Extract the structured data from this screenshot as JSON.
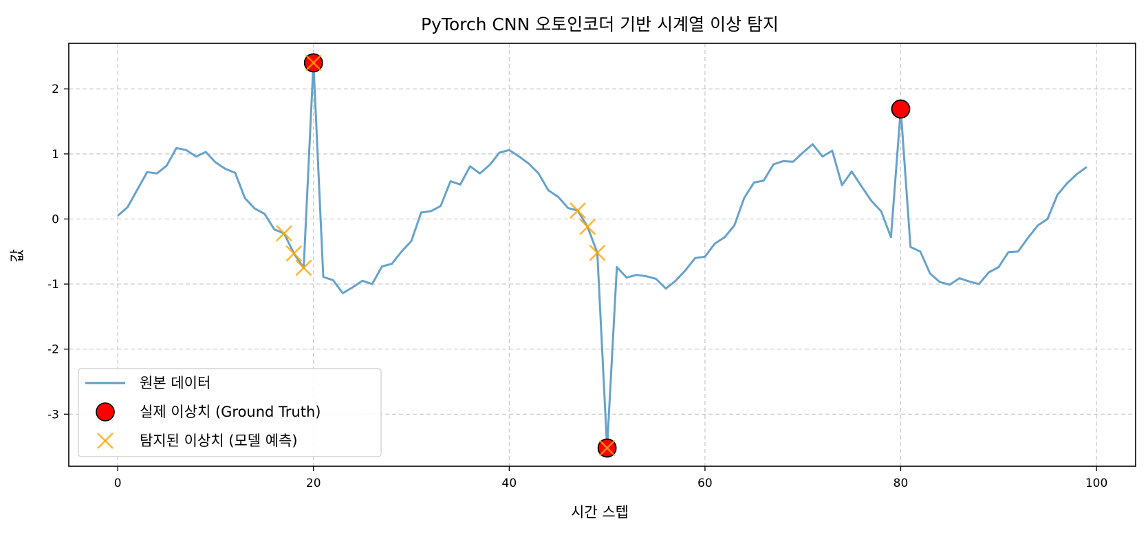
{
  "chart_data": {
    "type": "line",
    "title": "PyTorch CNN 오토인코더 기반 시계열 이상 탐지",
    "xlabel": "시간 스텝",
    "ylabel": "값",
    "xlim": [
      -5,
      104
    ],
    "ylim": [
      -3.8,
      2.7
    ],
    "xticks": [
      0,
      20,
      40,
      60,
      80,
      100
    ],
    "xtick_labels": [
      "0",
      "20",
      "40",
      "60",
      "80",
      "100"
    ],
    "yticks": [
      -3,
      -2,
      -1,
      0,
      1,
      2
    ],
    "ytick_labels": [
      "-3",
      "-2",
      "-1",
      "0",
      "1",
      "2"
    ],
    "grid": true,
    "legend_position": "lower-left",
    "series": [
      {
        "name": "원본 데이터",
        "kind": "line",
        "color": "#5f9dc8",
        "x": [
          0,
          1,
          2,
          3,
          4,
          5,
          6,
          7,
          8,
          9,
          10,
          11,
          12,
          13,
          14,
          15,
          16,
          17,
          18,
          19,
          20,
          21,
          22,
          23,
          24,
          25,
          26,
          27,
          28,
          29,
          30,
          31,
          32,
          33,
          34,
          35,
          36,
          37,
          38,
          39,
          40,
          41,
          42,
          43,
          44,
          45,
          46,
          47,
          48,
          49,
          50,
          51,
          52,
          53,
          54,
          55,
          56,
          57,
          58,
          59,
          60,
          61,
          62,
          63,
          64,
          65,
          66,
          67,
          68,
          69,
          70,
          71,
          72,
          73,
          74,
          75,
          76,
          77,
          78,
          79,
          80,
          81,
          82,
          83,
          84,
          85,
          86,
          87,
          88,
          89,
          90,
          91,
          92,
          93,
          94,
          95,
          96,
          97,
          98,
          99
        ],
        "y": [
          0.05,
          0.18,
          0.45,
          0.72,
          0.7,
          0.82,
          1.09,
          1.06,
          0.96,
          1.03,
          0.87,
          0.77,
          0.71,
          0.32,
          0.16,
          0.08,
          -0.16,
          -0.22,
          -0.53,
          -0.75,
          2.4,
          -0.89,
          -0.94,
          -1.14,
          -1.05,
          -0.95,
          -1.0,
          -0.73,
          -0.69,
          -0.5,
          -0.34,
          0.1,
          0.12,
          0.2,
          0.58,
          0.53,
          0.81,
          0.7,
          0.83,
          1.02,
          1.06,
          0.96,
          0.85,
          0.7,
          0.44,
          0.34,
          0.17,
          0.13,
          -0.12,
          -0.52,
          -3.52,
          -0.74,
          -0.9,
          -0.86,
          -0.88,
          -0.92,
          -1.07,
          -0.95,
          -0.79,
          -0.6,
          -0.58,
          -0.38,
          -0.28,
          -0.1,
          0.32,
          0.56,
          0.59,
          0.84,
          0.89,
          0.88,
          1.02,
          1.15,
          0.96,
          1.05,
          0.52,
          0.73,
          0.5,
          0.28,
          0.12,
          -0.28,
          1.69,
          -0.43,
          -0.5,
          -0.84,
          -0.97,
          -1.01,
          -0.91,
          -0.96,
          -1.0,
          -0.82,
          -0.74,
          -0.51,
          -0.5,
          -0.29,
          -0.1,
          0.0,
          0.37,
          0.55,
          0.69,
          0.8
        ]
      },
      {
        "name": "실제 이상치 (Ground Truth)",
        "kind": "scatter",
        "marker": "circle",
        "color": "#ff0000",
        "edge_color": "#000000",
        "x": [
          20,
          50,
          80
        ],
        "y": [
          2.4,
          -3.52,
          1.69
        ]
      },
      {
        "name": "탐지된 이상치 (모델 예측)",
        "kind": "scatter",
        "marker": "x",
        "color": "#ffa500",
        "x": [
          17,
          18,
          19,
          20,
          47,
          48,
          49,
          50
        ],
        "y": [
          -0.22,
          -0.53,
          -0.75,
          2.4,
          0.13,
          -0.12,
          -0.52,
          -3.52
        ]
      }
    ]
  }
}
